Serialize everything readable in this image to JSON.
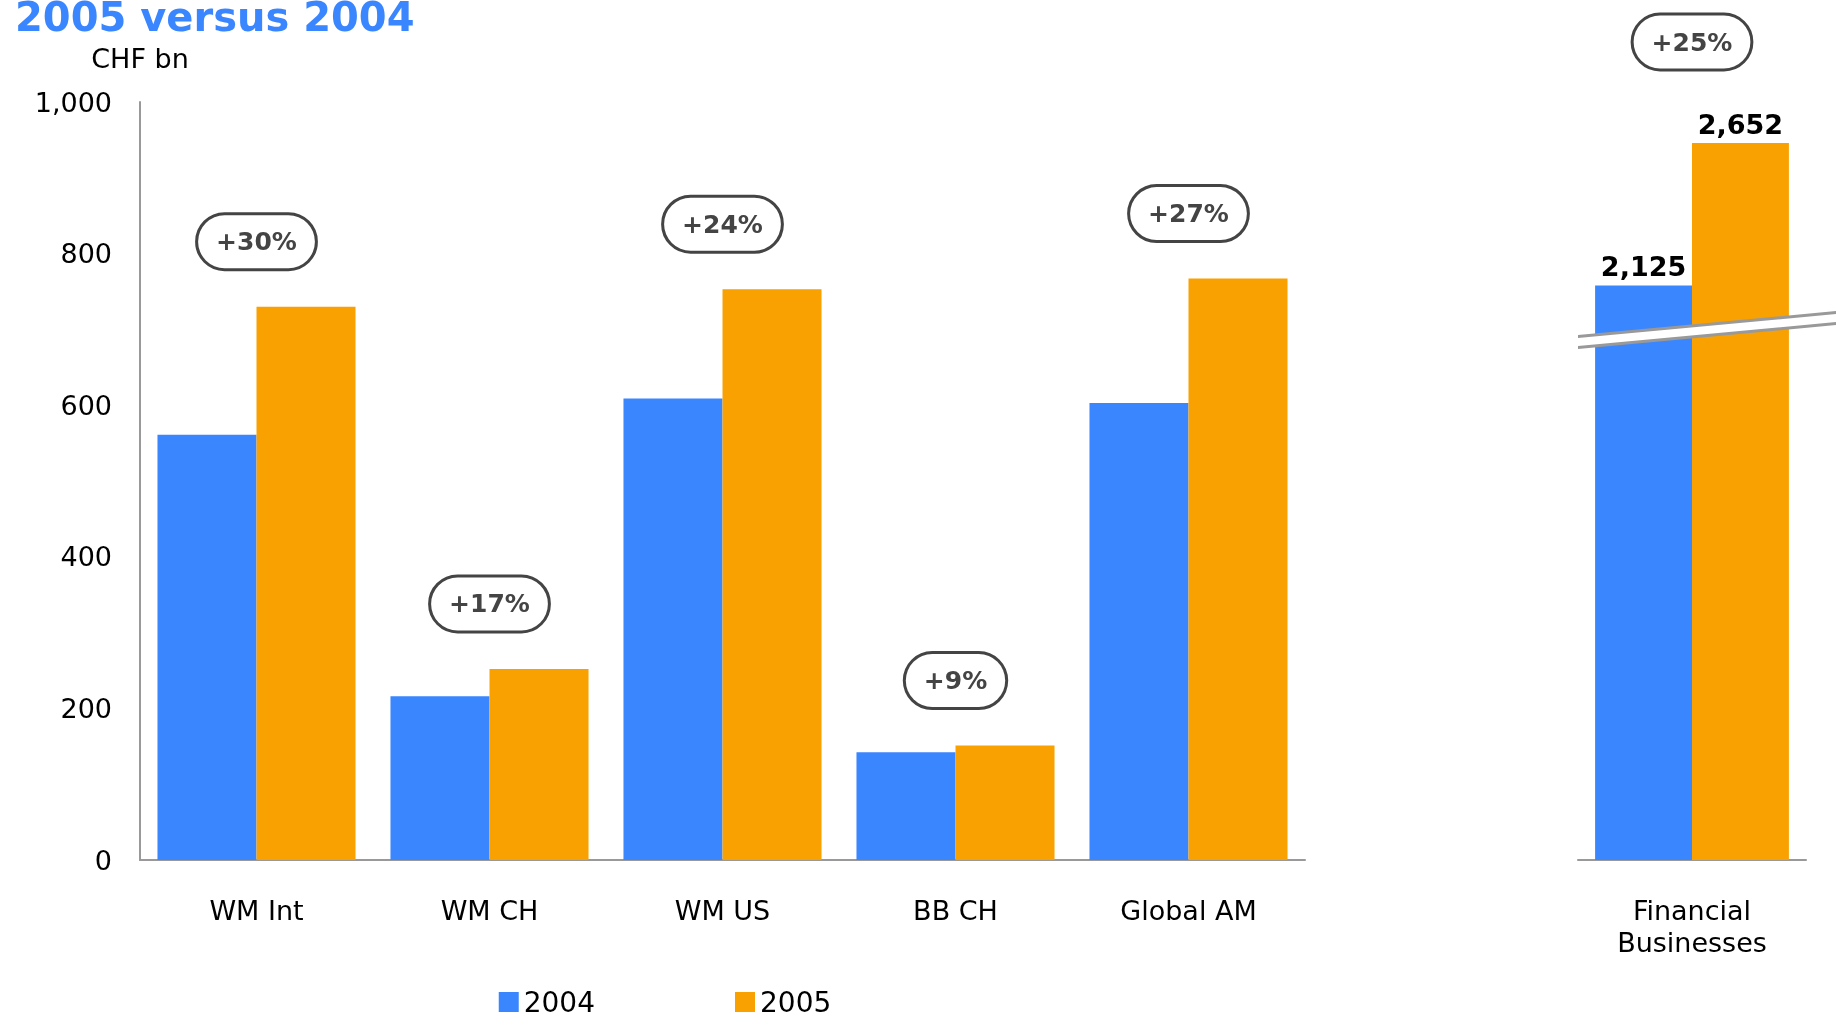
{
  "chart_data": [
    {
      "type": "bar",
      "title": "2005 versus 2004",
      "ylabel": "CHF bn",
      "categories": [
        "WM Int",
        "WM CH",
        "WM US",
        "BB CH",
        "Global AM"
      ],
      "series": [
        {
          "name": "2004",
          "color": "#3a86ff",
          "values": [
            561,
            216,
            609,
            142,
            603
          ]
        },
        {
          "name": "2005",
          "color": "#f9a100",
          "values": [
            730,
            252,
            753,
            151,
            767
          ]
        }
      ],
      "ylim": [
        0,
        1000
      ],
      "yticks": [
        0,
        200,
        400,
        600,
        800,
        {
          "value": 1000,
          "label": "1,000"
        }
      ],
      "legend": "bottom",
      "annotations": [
        "+30%",
        "+17%",
        "+24%",
        "+9%",
        "+27%"
      ]
    },
    {
      "type": "bar",
      "categories": [
        "Financial\nBusinesses"
      ],
      "series": [
        {
          "color": "#3a86ff",
          "values": [
            2125
          ],
          "value_labels": [
            "2,125"
          ]
        },
        {
          "color": "#f9a100",
          "values": [
            2652
          ],
          "value_labels": [
            "2,652"
          ]
        }
      ],
      "tick_labels": "x",
      "annotations": [
        "+25%"
      ]
    }
  ]
}
